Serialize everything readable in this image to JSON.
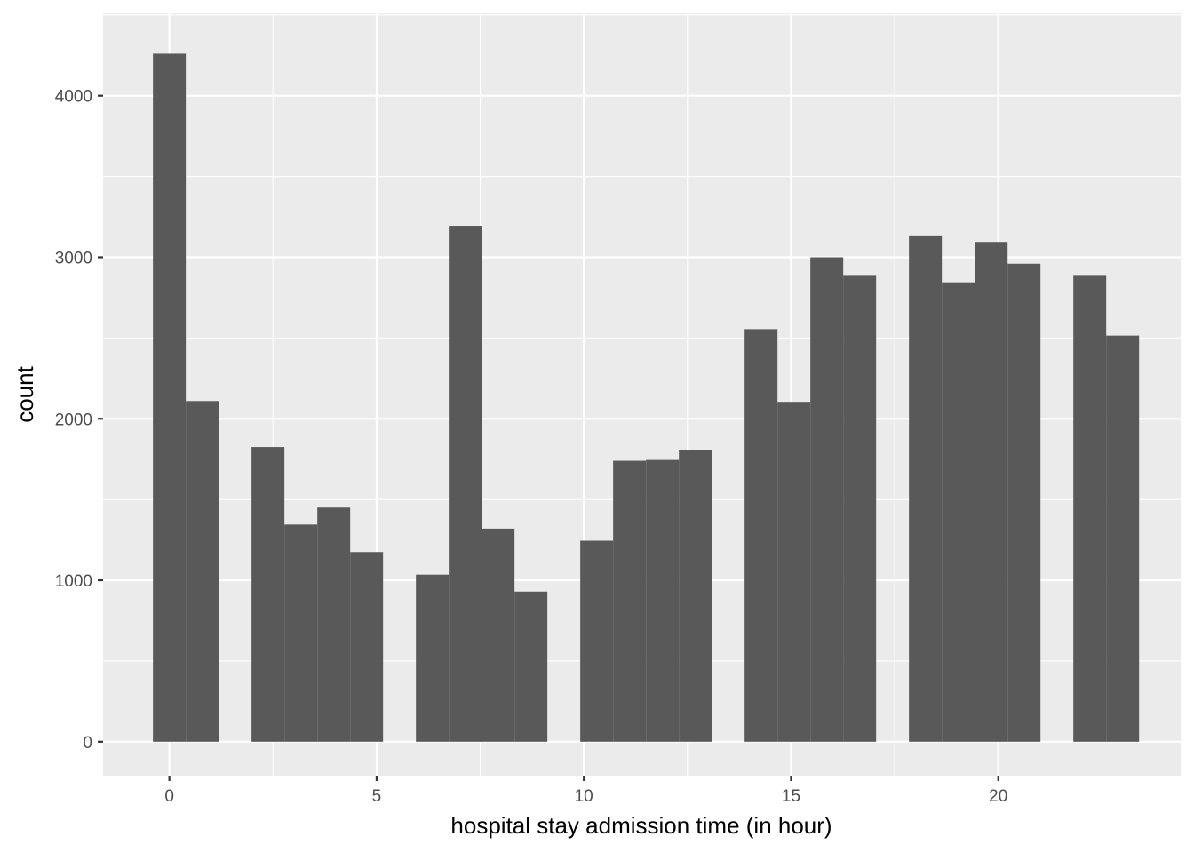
{
  "chart_data": {
    "type": "bar",
    "title": "",
    "xlabel": "hospital stay admission time (in hour)",
    "ylabel": "count",
    "bin_width": 0.7931,
    "bins": [
      {
        "x": 0.0,
        "count": 4260
      },
      {
        "x": 0.793,
        "count": 2110
      },
      {
        "x": 2.379,
        "count": 1825
      },
      {
        "x": 3.172,
        "count": 1345
      },
      {
        "x": 3.966,
        "count": 1450
      },
      {
        "x": 4.759,
        "count": 1175
      },
      {
        "x": 6.345,
        "count": 1035
      },
      {
        "x": 7.138,
        "count": 3195
      },
      {
        "x": 7.931,
        "count": 1320
      },
      {
        "x": 8.724,
        "count": 930
      },
      {
        "x": 10.31,
        "count": 1245
      },
      {
        "x": 11.103,
        "count": 1740
      },
      {
        "x": 11.897,
        "count": 1745
      },
      {
        "x": 12.69,
        "count": 1805
      },
      {
        "x": 14.276,
        "count": 2555
      },
      {
        "x": 15.069,
        "count": 2105
      },
      {
        "x": 15.862,
        "count": 3000
      },
      {
        "x": 16.655,
        "count": 2885
      },
      {
        "x": 18.241,
        "count": 3130
      },
      {
        "x": 19.034,
        "count": 2845
      },
      {
        "x": 19.828,
        "count": 3095
      },
      {
        "x": 20.621,
        "count": 2960
      },
      {
        "x": 22.207,
        "count": 2885
      },
      {
        "x": 23.0,
        "count": 2515
      }
    ],
    "xlim": [
      -1.6,
      24.4
    ],
    "ylim": [
      -210,
      4510
    ],
    "x_ticks": [
      0,
      5,
      10,
      15,
      20
    ],
    "x_tick_labels": [
      "0",
      "5",
      "10",
      "15",
      "20"
    ],
    "y_ticks": [
      0,
      1000,
      2000,
      3000,
      4000
    ],
    "y_tick_labels": [
      "0",
      "1000",
      "2000",
      "3000",
      "4000"
    ],
    "bar_color": "#595959",
    "panel_background": "#ebebeb",
    "grid": true,
    "grid_color": "#ffffff",
    "legend": "none"
  }
}
